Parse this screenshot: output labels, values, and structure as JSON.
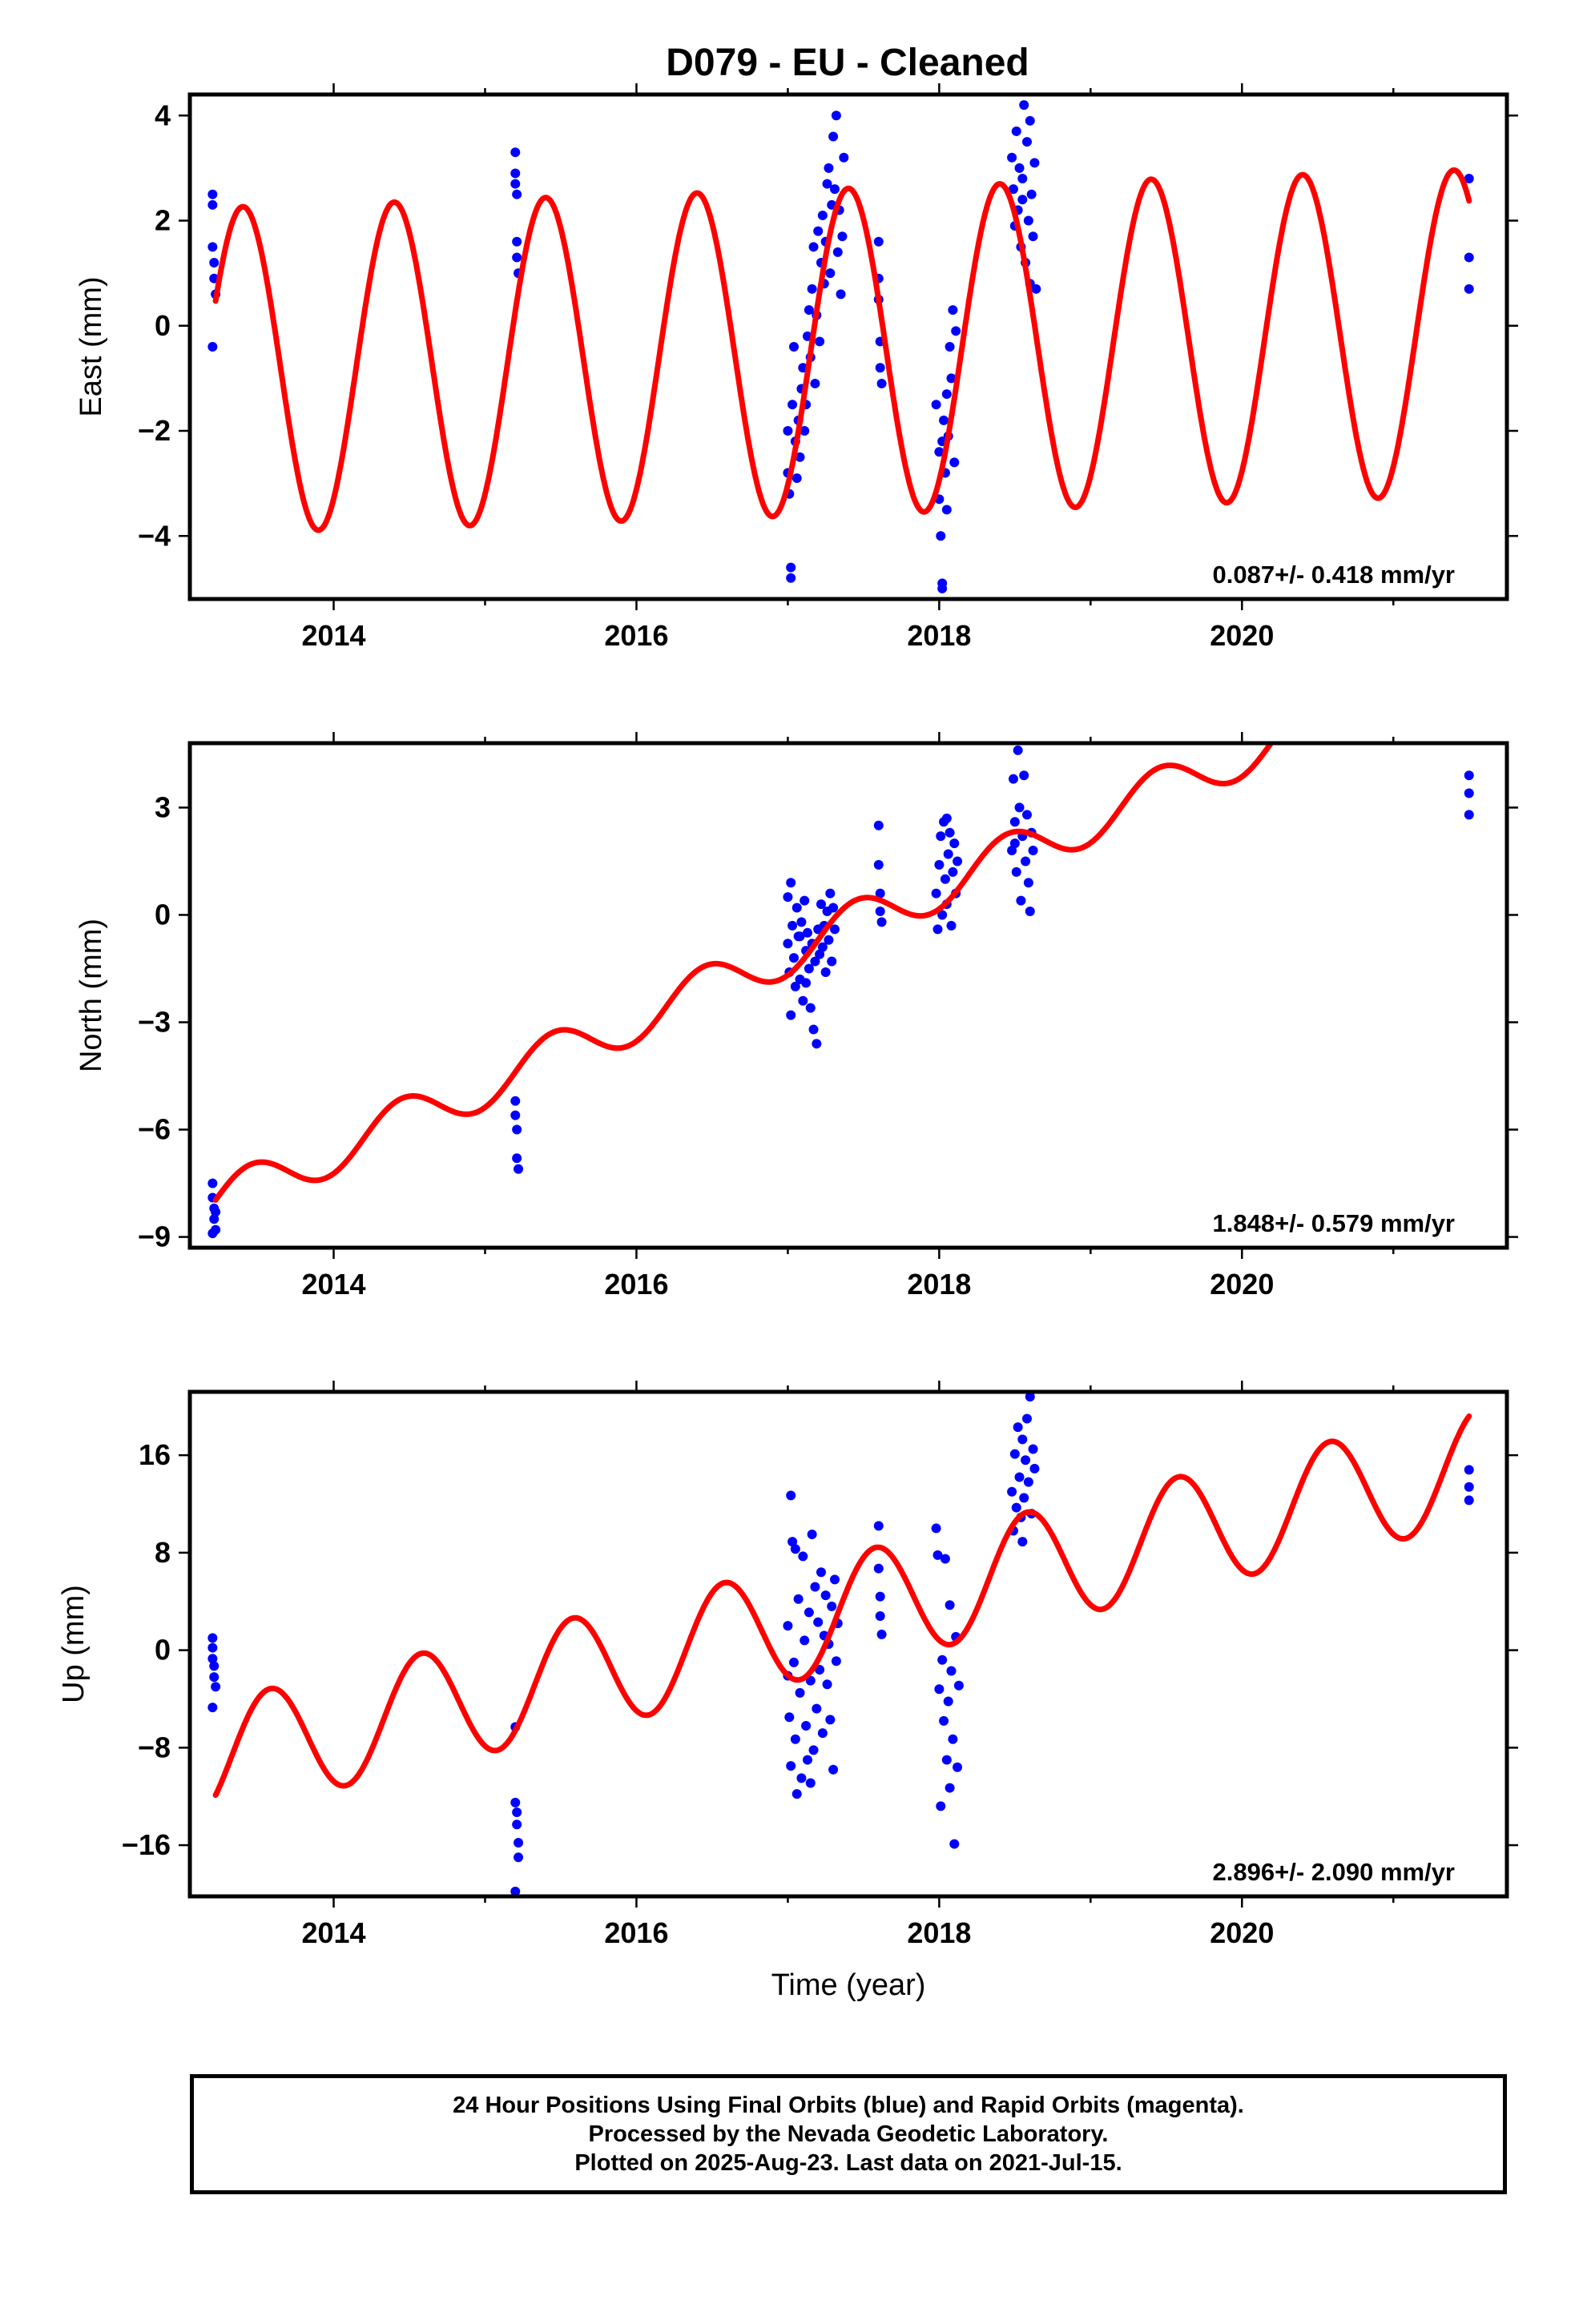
{
  "title": "D079  - EU - Cleaned",
  "footer": {
    "line1": "24 Hour Positions Using Final Orbits (blue) and Rapid Orbits (magenta).",
    "line2": "Processed by the Nevada Geodetic Laboratory.",
    "line3": "Plotted on 2025-Aug-23. Last data on 2021-Jul-15."
  },
  "colors": {
    "data_points": "#0000ff",
    "model_fit": "#ff0000",
    "frame": "#000000"
  },
  "chart_data": [
    {
      "type": "scatter",
      "name": "east",
      "ylabel": "East (mm)",
      "xlabel": "",
      "xlim": [
        2013.05,
        2021.75
      ],
      "ylim": [
        -5.2,
        4.4
      ],
      "x_ticks": [
        2014,
        2016,
        2018,
        2020
      ],
      "x_tick_labels": [
        "2014",
        "2016",
        "2018",
        "2020"
      ],
      "y_ticks": [
        -4,
        -2,
        0,
        2,
        4
      ],
      "y_tick_labels": [
        "−4",
        "−2",
        "0",
        "2",
        "4"
      ],
      "rate_label": "0.087+/- 0.418 mm/yr",
      "grid": false,
      "model": {
        "start": 2013.22,
        "end": 2021.5,
        "offset": -0.85,
        "slope": 0.087,
        "amp": 3.1,
        "peak": 2013.4
      },
      "points": [
        [
          2013.2,
          2.5
        ],
        [
          2013.2,
          2.3
        ],
        [
          2013.2,
          1.5
        ],
        [
          2013.21,
          1.2
        ],
        [
          2013.21,
          0.9
        ],
        [
          2013.22,
          0.6
        ],
        [
          2013.2,
          -0.4
        ],
        [
          2015.2,
          3.3
        ],
        [
          2015.2,
          2.9
        ],
        [
          2015.2,
          2.7
        ],
        [
          2015.21,
          2.5
        ],
        [
          2015.21,
          1.6
        ],
        [
          2015.21,
          1.3
        ],
        [
          2015.22,
          1.0
        ],
        [
          2017.0,
          -2.0
        ],
        [
          2017.0,
          -2.8
        ],
        [
          2017.01,
          -3.2
        ],
        [
          2017.02,
          -4.6
        ],
        [
          2017.02,
          -4.8
        ],
        [
          2017.03,
          -1.5
        ],
        [
          2017.04,
          -0.4
        ],
        [
          2017.05,
          -2.2
        ],
        [
          2017.06,
          -2.9
        ],
        [
          2017.07,
          -1.8
        ],
        [
          2017.08,
          -2.5
        ],
        [
          2017.09,
          -1.2
        ],
        [
          2017.1,
          -0.8
        ],
        [
          2017.11,
          -2.0
        ],
        [
          2017.12,
          -1.5
        ],
        [
          2017.13,
          -0.2
        ],
        [
          2017.14,
          0.3
        ],
        [
          2017.15,
          -0.6
        ],
        [
          2017.16,
          0.7
        ],
        [
          2017.17,
          1.5
        ],
        [
          2017.18,
          -1.1
        ],
        [
          2017.19,
          0.2
        ],
        [
          2017.2,
          1.8
        ],
        [
          2017.21,
          -0.3
        ],
        [
          2017.22,
          1.2
        ],
        [
          2017.23,
          2.1
        ],
        [
          2017.24,
          0.8
        ],
        [
          2017.25,
          1.6
        ],
        [
          2017.26,
          2.7
        ],
        [
          2017.27,
          3.0
        ],
        [
          2017.28,
          1.0
        ],
        [
          2017.29,
          2.3
        ],
        [
          2017.3,
          3.6
        ],
        [
          2017.31,
          2.6
        ],
        [
          2017.32,
          4.0
        ],
        [
          2017.33,
          1.4
        ],
        [
          2017.34,
          2.2
        ],
        [
          2017.35,
          0.6
        ],
        [
          2017.36,
          1.7
        ],
        [
          2017.37,
          3.2
        ],
        [
          2017.6,
          1.6
        ],
        [
          2017.6,
          0.9
        ],
        [
          2017.6,
          0.5
        ],
        [
          2017.61,
          -0.3
        ],
        [
          2017.61,
          -0.8
        ],
        [
          2017.62,
          -1.1
        ],
        [
          2017.98,
          -1.5
        ],
        [
          2018.0,
          -2.4
        ],
        [
          2018.0,
          -3.3
        ],
        [
          2018.01,
          -4.0
        ],
        [
          2018.02,
          -4.9
        ],
        [
          2018.02,
          -5.0
        ],
        [
          2018.03,
          -1.8
        ],
        [
          2018.04,
          -2.8
        ],
        [
          2018.05,
          -1.3
        ],
        [
          2018.06,
          -2.1
        ],
        [
          2018.07,
          -0.4
        ],
        [
          2018.08,
          -1.0
        ],
        [
          2018.09,
          0.3
        ],
        [
          2018.1,
          -2.6
        ],
        [
          2018.11,
          -0.1
        ],
        [
          2018.05,
          -3.5
        ],
        [
          2018.02,
          -2.2
        ],
        [
          2018.48,
          3.2
        ],
        [
          2018.49,
          2.6
        ],
        [
          2018.5,
          1.9
        ],
        [
          2018.51,
          3.7
        ],
        [
          2018.52,
          2.2
        ],
        [
          2018.53,
          3.0
        ],
        [
          2018.54,
          1.5
        ],
        [
          2018.55,
          2.8
        ],
        [
          2018.56,
          4.2
        ],
        [
          2018.57,
          1.2
        ],
        [
          2018.58,
          3.5
        ],
        [
          2018.59,
          2.0
        ],
        [
          2018.6,
          0.8
        ],
        [
          2018.61,
          2.5
        ],
        [
          2018.62,
          1.7
        ],
        [
          2018.63,
          3.1
        ],
        [
          2018.64,
          0.7
        ],
        [
          2018.6,
          3.9
        ],
        [
          2018.55,
          2.4
        ],
        [
          2021.5,
          2.8
        ],
        [
          2021.5,
          1.3
        ],
        [
          2021.5,
          0.7
        ]
      ]
    },
    {
      "type": "scatter",
      "name": "north",
      "ylabel": "North (mm)",
      "xlabel": "",
      "xlim": [
        2013.05,
        2021.75
      ],
      "ylim": [
        -9.3,
        4.8
      ],
      "x_ticks": [
        2014,
        2016,
        2018,
        2020
      ],
      "x_tick_labels": [
        "2014",
        "2016",
        "2018",
        "2020"
      ],
      "y_ticks": [
        -9,
        -6,
        -3,
        0,
        3
      ],
      "y_tick_labels": [
        "−9",
        "−6",
        "−3",
        "0",
        "3"
      ],
      "rate_label": "1.848+/- 0.579 mm/yr",
      "grid": false,
      "model": {
        "start": 2013.22,
        "end": 2021.5,
        "offset": -8.05,
        "slope": 1.848,
        "amp": 0.65,
        "peak": 2013.45
      },
      "points": [
        [
          2013.2,
          -7.5
        ],
        [
          2013.2,
          -7.9
        ],
        [
          2013.21,
          -8.2
        ],
        [
          2013.21,
          -8.5
        ],
        [
          2013.22,
          -8.8
        ],
        [
          2013.22,
          -8.3
        ],
        [
          2013.2,
          -8.9
        ],
        [
          2015.2,
          -5.2
        ],
        [
          2015.2,
          -5.6
        ],
        [
          2015.21,
          -6.0
        ],
        [
          2015.21,
          -6.8
        ],
        [
          2015.22,
          -7.1
        ],
        [
          2017.0,
          0.5
        ],
        [
          2017.0,
          -0.8
        ],
        [
          2017.01,
          -1.6
        ],
        [
          2017.02,
          -2.8
        ],
        [
          2017.02,
          0.9
        ],
        [
          2017.03,
          -0.3
        ],
        [
          2017.04,
          -1.2
        ],
        [
          2017.05,
          -2.0
        ],
        [
          2017.06,
          0.2
        ],
        [
          2017.07,
          -0.6
        ],
        [
          2017.08,
          -1.8
        ],
        [
          2017.09,
          -0.2
        ],
        [
          2017.1,
          -2.4
        ],
        [
          2017.11,
          0.4
        ],
        [
          2017.12,
          -1.0
        ],
        [
          2017.13,
          -0.5
        ],
        [
          2017.14,
          -1.5
        ],
        [
          2017.15,
          -2.6
        ],
        [
          2017.16,
          -0.8
        ],
        [
          2017.17,
          -3.2
        ],
        [
          2017.18,
          -1.3
        ],
        [
          2017.19,
          -3.6
        ],
        [
          2017.2,
          -0.4
        ],
        [
          2017.21,
          -1.1
        ],
        [
          2017.22,
          0.3
        ],
        [
          2017.23,
          -0.9
        ],
        [
          2017.24,
          -0.3
        ],
        [
          2017.25,
          -1.6
        ],
        [
          2017.26,
          0.1
        ],
        [
          2017.27,
          -0.7
        ],
        [
          2017.28,
          0.6
        ],
        [
          2017.29,
          -1.3
        ],
        [
          2017.3,
          0.2
        ],
        [
          2017.31,
          -0.4
        ],
        [
          2017.08,
          -0.6
        ],
        [
          2017.12,
          -1.9
        ],
        [
          2017.6,
          2.5
        ],
        [
          2017.6,
          1.4
        ],
        [
          2017.61,
          0.6
        ],
        [
          2017.61,
          0.1
        ],
        [
          2017.62,
          -0.2
        ],
        [
          2017.98,
          0.6
        ],
        [
          2017.99,
          -0.4
        ],
        [
          2018.0,
          1.4
        ],
        [
          2018.01,
          2.2
        ],
        [
          2018.02,
          0.0
        ],
        [
          2018.03,
          2.6
        ],
        [
          2018.04,
          1.0
        ],
        [
          2018.05,
          0.3
        ],
        [
          2018.06,
          1.7
        ],
        [
          2018.07,
          2.3
        ],
        [
          2018.08,
          -0.3
        ],
        [
          2018.09,
          1.2
        ],
        [
          2018.1,
          2.0
        ],
        [
          2018.11,
          0.6
        ],
        [
          2018.12,
          1.5
        ],
        [
          2018.05,
          2.7
        ],
        [
          2018.48,
          1.8
        ],
        [
          2018.49,
          3.8
        ],
        [
          2018.5,
          2.6
        ],
        [
          2018.51,
          1.2
        ],
        [
          2018.52,
          4.6
        ],
        [
          2018.53,
          3.0
        ],
        [
          2018.54,
          0.4
        ],
        [
          2018.55,
          2.2
        ],
        [
          2018.56,
          3.9
        ],
        [
          2018.57,
          1.5
        ],
        [
          2018.58,
          2.8
        ],
        [
          2018.59,
          0.9
        ],
        [
          2018.6,
          0.1
        ],
        [
          2018.61,
          2.3
        ],
        [
          2018.62,
          1.8
        ],
        [
          2018.5,
          2.0
        ],
        [
          2021.5,
          3.9
        ],
        [
          2021.5,
          3.4
        ],
        [
          2021.5,
          2.8
        ]
      ]
    },
    {
      "type": "scatter",
      "name": "up",
      "ylabel": "Up (mm)",
      "xlabel": "Time (year)",
      "xlim": [
        2013.05,
        2021.75
      ],
      "ylim": [
        -20.2,
        21.2
      ],
      "x_ticks": [
        2014,
        2016,
        2018,
        2020
      ],
      "x_tick_labels": [
        "2014",
        "2016",
        "2018",
        "2020"
      ],
      "y_ticks": [
        -16,
        -8,
        0,
        8,
        16
      ],
      "y_tick_labels": [
        "−16",
        "−8",
        "0",
        "8",
        "16"
      ],
      "rate_label": "2.896+/- 2.090 mm/yr",
      "grid": false,
      "model": {
        "start": 2013.22,
        "end": 2021.5,
        "offset": -8.9,
        "slope": 2.896,
        "amp": 4.7,
        "peak": 2013.58
      },
      "points": [
        [
          2013.2,
          1.0
        ],
        [
          2013.2,
          0.2
        ],
        [
          2013.2,
          -0.7
        ],
        [
          2013.21,
          -1.3
        ],
        [
          2013.21,
          -2.2
        ],
        [
          2013.22,
          -3.0
        ],
        [
          2013.2,
          -4.7
        ],
        [
          2015.2,
          -6.3
        ],
        [
          2015.2,
          -12.5
        ],
        [
          2015.21,
          -13.3
        ],
        [
          2015.21,
          -14.3
        ],
        [
          2015.22,
          -15.8
        ],
        [
          2015.22,
          -17.0
        ],
        [
          2015.2,
          -19.8
        ],
        [
          2017.0,
          2.0
        ],
        [
          2017.0,
          -2.1
        ],
        [
          2017.01,
          -5.5
        ],
        [
          2017.02,
          -9.5
        ],
        [
          2017.02,
          12.7
        ],
        [
          2017.03,
          8.9
        ],
        [
          2017.04,
          -1.0
        ],
        [
          2017.05,
          -7.3
        ],
        [
          2017.06,
          -11.8
        ],
        [
          2017.07,
          4.2
        ],
        [
          2017.08,
          -3.5
        ],
        [
          2017.09,
          -10.5
        ],
        [
          2017.1,
          7.7
        ],
        [
          2017.11,
          0.8
        ],
        [
          2017.12,
          -6.2
        ],
        [
          2017.13,
          -9.0
        ],
        [
          2017.14,
          3.1
        ],
        [
          2017.15,
          -2.5
        ],
        [
          2017.16,
          9.5
        ],
        [
          2017.17,
          -8.2
        ],
        [
          2017.18,
          5.2
        ],
        [
          2017.19,
          -4.8
        ],
        [
          2017.2,
          2.3
        ],
        [
          2017.21,
          -1.6
        ],
        [
          2017.22,
          6.4
        ],
        [
          2017.23,
          -6.8
        ],
        [
          2017.24,
          1.2
        ],
        [
          2017.25,
          4.5
        ],
        [
          2017.26,
          -2.8
        ],
        [
          2017.27,
          0.5
        ],
        [
          2017.28,
          -5.7
        ],
        [
          2017.29,
          3.6
        ],
        [
          2017.3,
          -9.8
        ],
        [
          2017.31,
          5.8
        ],
        [
          2017.32,
          -0.9
        ],
        [
          2017.33,
          2.2
        ],
        [
          2017.15,
          -10.9
        ],
        [
          2017.05,
          8.3
        ],
        [
          2017.6,
          10.2
        ],
        [
          2017.6,
          6.7
        ],
        [
          2017.61,
          4.4
        ],
        [
          2017.61,
          2.8
        ],
        [
          2017.62,
          1.3
        ],
        [
          2017.98,
          10.0
        ],
        [
          2017.99,
          7.8
        ],
        [
          2018.0,
          -3.2
        ],
        [
          2018.01,
          -12.8
        ],
        [
          2018.02,
          -0.8
        ],
        [
          2018.03,
          -5.8
        ],
        [
          2018.04,
          7.5
        ],
        [
          2018.05,
          -9.0
        ],
        [
          2018.06,
          -4.2
        ],
        [
          2018.07,
          -11.3
        ],
        [
          2018.08,
          -1.7
        ],
        [
          2018.09,
          -7.3
        ],
        [
          2018.1,
          -15.9
        ],
        [
          2018.11,
          1.1
        ],
        [
          2018.12,
          -9.6
        ],
        [
          2018.13,
          -2.9
        ],
        [
          2018.07,
          3.7
        ],
        [
          2018.48,
          13.0
        ],
        [
          2018.49,
          9.8
        ],
        [
          2018.5,
          16.1
        ],
        [
          2018.51,
          11.7
        ],
        [
          2018.52,
          18.3
        ],
        [
          2018.53,
          14.2
        ],
        [
          2018.54,
          10.9
        ],
        [
          2018.55,
          17.3
        ],
        [
          2018.56,
          12.5
        ],
        [
          2018.57,
          15.6
        ],
        [
          2018.58,
          19.0
        ],
        [
          2018.59,
          13.8
        ],
        [
          2018.6,
          20.8
        ],
        [
          2018.61,
          11.2
        ],
        [
          2018.62,
          16.5
        ],
        [
          2018.63,
          14.9
        ],
        [
          2018.55,
          8.9
        ],
        [
          2021.5,
          14.8
        ],
        [
          2021.5,
          13.4
        ],
        [
          2021.5,
          12.3
        ]
      ]
    }
  ]
}
